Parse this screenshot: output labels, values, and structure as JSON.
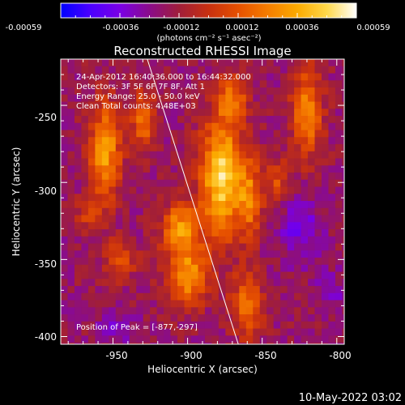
{
  "colorbar": {
    "tick_labels": [
      "-0.00059",
      "-0.00036",
      "-0.00012",
      "0.00012",
      "0.00036",
      "0.00059"
    ],
    "units_label": "(photons cm⁻² s⁻¹ asec⁻²)",
    "colormap": [
      "#0000ff",
      "#4b00ff",
      "#7a00e6",
      "#8a0c8a",
      "#a01e3a",
      "#c83010",
      "#e65000",
      "#f57d00",
      "#fbaa00",
      "#ffd84a",
      "#ffffff"
    ]
  },
  "chart": {
    "title": "Reconstructed RHESSI Image",
    "xlabel": "Heliocentric X (arcsec)",
    "ylabel": "Heliocentric Y (arcsec)",
    "x_ticks": [
      "-950",
      "-900",
      "-850",
      "-800"
    ],
    "y_ticks": [
      "-250",
      "-300",
      "-350",
      "-400"
    ],
    "annotations": [
      "24-Apr-2012 16:40:36.000 to 16:44:32.000",
      "Detectors: 3F 5F 6F 7F 8F, Att 1",
      "Energy Range: 25.0 - 50.0 keV",
      "Clean     Total counts: 4.48E+03"
    ],
    "peak_label": "Position of Peak = [-877,-297]",
    "limb_color": "#ffffff"
  },
  "footer": {
    "timestamp": "10-May-2022 03:02"
  },
  "chart_data": {
    "type": "heatmap",
    "title": "Reconstructed RHESSI Image",
    "xlabel": "Heliocentric X (arcsec)",
    "ylabel": "Heliocentric Y (arcsec)",
    "xlim": [
      -985,
      -795
    ],
    "ylim": [
      -405,
      -220
    ],
    "zlim": [
      -0.00059,
      0.00059
    ],
    "peak": [
      -877,
      -297
    ],
    "limb_line": [
      [
        -927,
        -220
      ],
      [
        -866,
        -405
      ]
    ]
  }
}
